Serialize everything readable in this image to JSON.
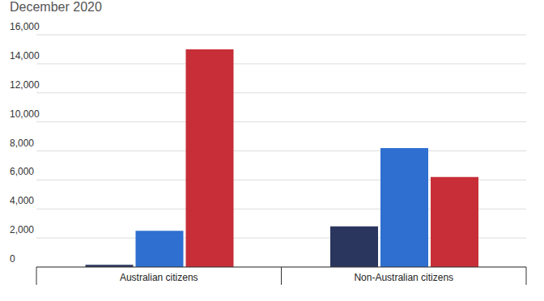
{
  "chart_data": {
    "type": "bar",
    "title": "December 2020",
    "categories": [
      "Australian citizens",
      "Non-Australian citizens"
    ],
    "series": [
      {
        "color": "#2b365f",
        "values": [
          150,
          2800
        ]
      },
      {
        "color": "#2f6fd0",
        "values": [
          2500,
          8200
        ]
      },
      {
        "color": "#c72e37",
        "values": [
          15000,
          6200
        ]
      }
    ],
    "ylim": [
      0,
      16000
    ],
    "yticks": [
      0,
      {
        "value": 2000,
        "label": "2,000"
      },
      {
        "value": 4000,
        "label": "4,000"
      },
      {
        "value": 6000,
        "label": "6,000"
      },
      {
        "value": 8000,
        "label": "8,000"
      },
      {
        "value": 10000,
        "label": "10,000"
      },
      {
        "value": 12000,
        "label": "12,000"
      },
      {
        "value": 14000,
        "label": "14,000"
      },
      {
        "value": 16000,
        "label": "16,000"
      }
    ],
    "grid": true
  }
}
